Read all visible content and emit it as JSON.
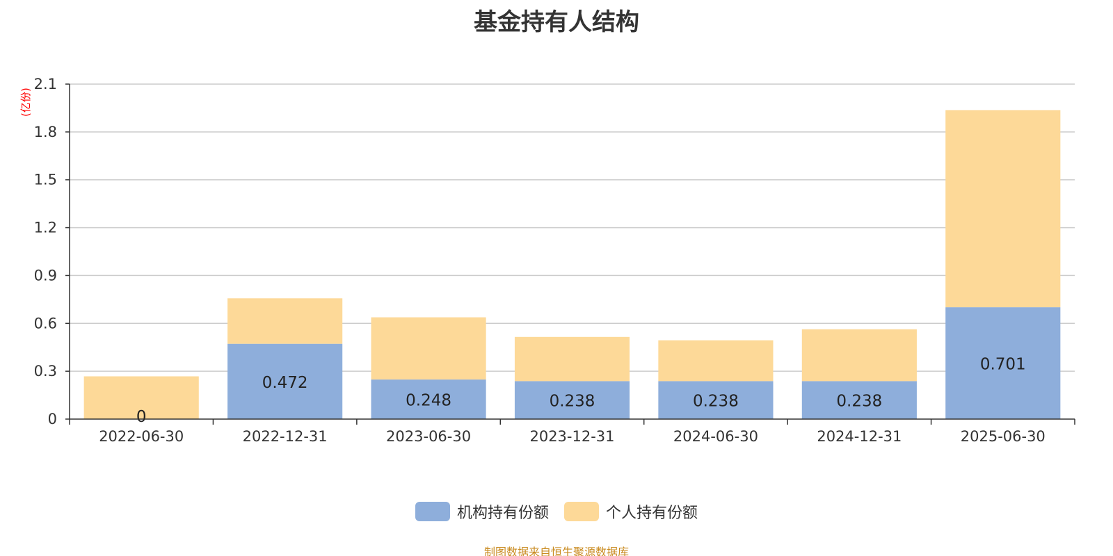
{
  "chart_data": {
    "type": "bar",
    "stacked": true,
    "title": "基金持有人结构",
    "unit_label": "(亿份)",
    "categories": [
      "2022-06-30",
      "2022-12-31",
      "2023-06-30",
      "2023-12-31",
      "2024-06-30",
      "2024-12-31",
      "2025-06-30"
    ],
    "series": [
      {
        "name": "机构持有份额",
        "color": "#8eaedb",
        "values": [
          0,
          0.472,
          0.248,
          0.238,
          0.238,
          0.238,
          0.701
        ],
        "data_labels": [
          "0",
          "0.472",
          "0.248",
          "0.238",
          "0.238",
          "0.238",
          "0.701"
        ]
      },
      {
        "name": "个人持有份额",
        "color": "#fdd998",
        "values": [
          0.268,
          0.285,
          0.39,
          0.277,
          0.256,
          0.325,
          1.236
        ]
      }
    ],
    "ylim": [
      0,
      2.1
    ],
    "yticks": [
      0,
      0.3,
      0.6,
      0.9,
      1.2,
      1.5,
      1.8,
      2.1
    ],
    "ytick_labels": [
      "0",
      "0.3",
      "0.6",
      "0.9",
      "1.2",
      "1.5",
      "1.8",
      "2.1"
    ],
    "grid": true,
    "legend_position": "bottom-center"
  },
  "colors": {
    "unit_label": "#ff0000",
    "source_note": "#c98a1e",
    "grid": "#cccccc",
    "axis": "#333333"
  },
  "source_note": "制图数据来自恒生聚源数据库"
}
